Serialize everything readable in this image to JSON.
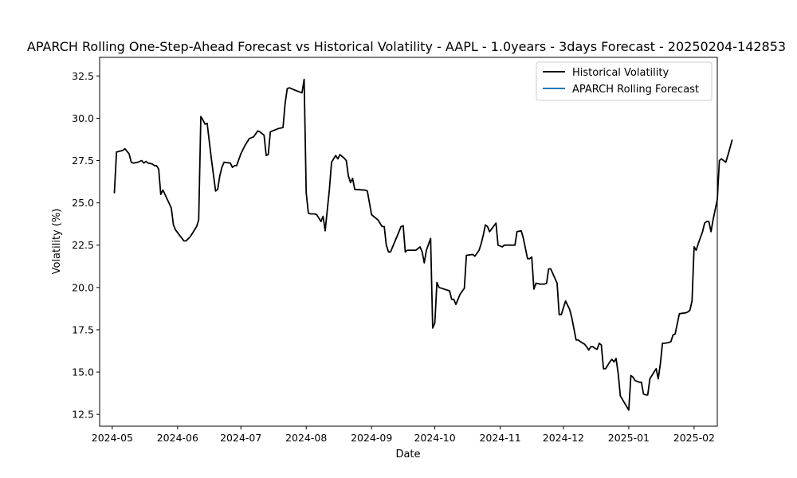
{
  "chart_data": {
    "type": "line",
    "title": "APARCH Rolling One-Step-Ahead Forecast vs Historical Volatility - AAPL - 1.0years - 3days Forecast - 20250204-142853",
    "xlabel": "Date",
    "ylabel": "Volatility (%)",
    "grid": false,
    "legend_position": "top-right",
    "x_ticks": [
      "2024-05",
      "2024-06",
      "2024-07",
      "2024-08",
      "2024-09",
      "2024-10",
      "2024-11",
      "2024-12",
      "2025-01",
      "2025-02"
    ],
    "y_ticks": [
      "12.5",
      "15.0",
      "17.5",
      "20.0",
      "22.5",
      "25.0",
      "27.5",
      "30.0",
      "32.5"
    ],
    "xlim": [
      "2024-04-25",
      "2025-02-12"
    ],
    "ylim": [
      11.8,
      33.6
    ],
    "series": [
      {
        "name": "Historical Volatility",
        "color": "#000000",
        "points": [
          [
            "2024-05-02",
            25.6
          ],
          [
            "2024-05-03",
            28.0
          ],
          [
            "2024-05-06",
            28.1
          ],
          [
            "2024-05-07",
            28.2
          ],
          [
            "2024-05-09",
            27.9
          ],
          [
            "2024-05-10",
            27.4
          ],
          [
            "2024-05-11",
            27.35
          ],
          [
            "2024-05-13",
            27.4
          ],
          [
            "2024-05-15",
            27.5
          ],
          [
            "2024-05-16",
            27.35
          ],
          [
            "2024-05-17",
            27.45
          ],
          [
            "2024-05-18",
            27.35
          ],
          [
            "2024-05-20",
            27.3
          ],
          [
            "2024-05-21",
            27.2
          ],
          [
            "2024-05-22",
            27.2
          ],
          [
            "2024-05-23",
            27.0
          ],
          [
            "2024-05-24",
            25.5
          ],
          [
            "2024-05-25",
            25.75
          ],
          [
            "2024-05-26",
            25.5
          ],
          [
            "2024-05-29",
            24.7
          ],
          [
            "2024-05-30",
            23.7
          ],
          [
            "2024-05-31",
            23.4
          ],
          [
            "2024-06-04",
            22.75
          ],
          [
            "2024-06-05",
            22.75
          ],
          [
            "2024-06-07",
            23.0
          ],
          [
            "2024-06-10",
            23.6
          ],
          [
            "2024-06-11",
            24.0
          ],
          [
            "2024-06-12",
            30.1
          ],
          [
            "2024-06-13",
            29.9
          ],
          [
            "2024-06-14",
            29.65
          ],
          [
            "2024-06-15",
            29.7
          ],
          [
            "2024-06-17",
            27.6
          ],
          [
            "2024-06-19",
            25.7
          ],
          [
            "2024-06-20",
            25.8
          ],
          [
            "2024-06-21",
            26.6
          ],
          [
            "2024-06-22",
            27.1
          ],
          [
            "2024-06-23",
            27.4
          ],
          [
            "2024-06-26",
            27.35
          ],
          [
            "2024-06-27",
            27.1
          ],
          [
            "2024-06-28",
            27.2
          ],
          [
            "2024-06-29",
            27.2
          ],
          [
            "2024-07-01",
            27.9
          ],
          [
            "2024-07-03",
            28.4
          ],
          [
            "2024-07-05",
            28.8
          ],
          [
            "2024-07-07",
            28.9
          ],
          [
            "2024-07-09",
            29.25
          ],
          [
            "2024-07-10",
            29.2
          ],
          [
            "2024-07-12",
            29.0
          ],
          [
            "2024-07-13",
            27.8
          ],
          [
            "2024-07-14",
            27.85
          ],
          [
            "2024-07-15",
            29.2
          ],
          [
            "2024-07-17",
            29.3
          ],
          [
            "2024-07-19",
            29.4
          ],
          [
            "2024-07-21",
            29.45
          ],
          [
            "2024-07-22",
            30.9
          ],
          [
            "2024-07-23",
            31.75
          ],
          [
            "2024-07-24",
            31.8
          ],
          [
            "2024-07-26",
            31.7
          ],
          [
            "2024-07-28",
            31.6
          ],
          [
            "2024-07-30",
            31.5
          ],
          [
            "2024-07-31",
            32.3
          ],
          [
            "2024-08-01",
            25.6
          ],
          [
            "2024-08-02",
            24.4
          ],
          [
            "2024-08-03",
            24.35
          ],
          [
            "2024-08-05",
            24.35
          ],
          [
            "2024-08-06",
            24.3
          ],
          [
            "2024-08-07",
            24.1
          ],
          [
            "2024-08-08",
            23.9
          ],
          [
            "2024-08-09",
            24.2
          ],
          [
            "2024-08-10",
            23.35
          ],
          [
            "2024-08-11",
            24.6
          ],
          [
            "2024-08-12",
            25.8
          ],
          [
            "2024-08-13",
            27.4
          ],
          [
            "2024-08-14",
            27.6
          ],
          [
            "2024-08-15",
            27.8
          ],
          [
            "2024-08-16",
            27.6
          ],
          [
            "2024-08-17",
            27.85
          ],
          [
            "2024-08-19",
            27.65
          ],
          [
            "2024-08-20",
            27.5
          ],
          [
            "2024-08-21",
            26.6
          ],
          [
            "2024-08-22",
            26.2
          ],
          [
            "2024-08-23",
            26.45
          ],
          [
            "2024-08-24",
            25.8
          ],
          [
            "2024-08-29",
            25.75
          ],
          [
            "2024-08-30",
            25.7
          ],
          [
            "2024-09-01",
            24.3
          ],
          [
            "2024-09-04",
            24.0
          ],
          [
            "2024-09-06",
            23.6
          ],
          [
            "2024-09-07",
            23.6
          ],
          [
            "2024-09-08",
            22.5
          ],
          [
            "2024-09-09",
            22.1
          ],
          [
            "2024-09-10",
            22.1
          ],
          [
            "2024-09-12",
            22.7
          ],
          [
            "2024-09-13",
            23.0
          ],
          [
            "2024-09-15",
            23.6
          ],
          [
            "2024-09-16",
            23.65
          ],
          [
            "2024-09-17",
            22.1
          ],
          [
            "2024-09-18",
            22.2
          ],
          [
            "2024-09-21",
            22.2
          ],
          [
            "2024-09-22",
            22.2
          ],
          [
            "2024-09-23",
            22.3
          ],
          [
            "2024-09-24",
            22.4
          ],
          [
            "2024-09-25",
            22.1
          ],
          [
            "2024-09-26",
            21.45
          ],
          [
            "2024-09-27",
            22.2
          ],
          [
            "2024-09-29",
            22.9
          ],
          [
            "2024-09-30",
            17.6
          ],
          [
            "2024-10-01",
            17.9
          ],
          [
            "2024-10-02",
            20.3
          ],
          [
            "2024-10-03",
            20.0
          ],
          [
            "2024-10-08",
            19.8
          ],
          [
            "2024-10-09",
            19.3
          ],
          [
            "2024-10-10",
            19.3
          ],
          [
            "2024-10-11",
            19.0
          ],
          [
            "2024-10-13",
            19.6
          ],
          [
            "2024-10-15",
            19.95
          ],
          [
            "2024-10-16",
            21.9
          ],
          [
            "2024-10-19",
            21.95
          ],
          [
            "2024-10-20",
            21.85
          ],
          [
            "2024-10-22",
            22.2
          ],
          [
            "2024-10-23",
            22.6
          ],
          [
            "2024-10-24",
            23.1
          ],
          [
            "2024-10-25",
            23.7
          ],
          [
            "2024-10-26",
            23.6
          ],
          [
            "2024-10-27",
            23.3
          ],
          [
            "2024-10-30",
            23.8
          ],
          [
            "2024-10-31",
            22.5
          ],
          [
            "2024-11-02",
            22.4
          ],
          [
            "2024-11-03",
            22.5
          ],
          [
            "2024-11-06",
            22.5
          ],
          [
            "2024-11-08",
            22.5
          ],
          [
            "2024-11-09",
            23.3
          ],
          [
            "2024-11-11",
            23.35
          ],
          [
            "2024-11-12",
            22.9
          ],
          [
            "2024-11-13",
            22.3
          ],
          [
            "2024-11-14",
            21.7
          ],
          [
            "2024-11-15",
            21.7
          ],
          [
            "2024-11-16",
            21.8
          ],
          [
            "2024-11-17",
            19.9
          ],
          [
            "2024-11-18",
            20.25
          ],
          [
            "2024-11-20",
            20.2
          ],
          [
            "2024-11-22",
            20.2
          ],
          [
            "2024-11-23",
            20.25
          ],
          [
            "2024-11-24",
            21.1
          ],
          [
            "2024-11-25",
            21.1
          ],
          [
            "2024-11-28",
            20.25
          ],
          [
            "2024-11-29",
            18.4
          ],
          [
            "2024-11-30",
            18.4
          ],
          [
            "2024-12-02",
            19.2
          ],
          [
            "2024-12-04",
            18.7
          ],
          [
            "2024-12-05",
            18.2
          ],
          [
            "2024-12-07",
            16.9
          ],
          [
            "2024-12-08",
            16.9
          ],
          [
            "2024-12-09",
            16.8
          ],
          [
            "2024-12-11",
            16.65
          ],
          [
            "2024-12-12",
            16.5
          ],
          [
            "2024-12-13",
            16.3
          ],
          [
            "2024-12-14",
            16.5
          ],
          [
            "2024-12-15",
            16.5
          ],
          [
            "2024-12-16",
            16.4
          ],
          [
            "2024-12-17",
            16.35
          ],
          [
            "2024-12-18",
            16.7
          ],
          [
            "2024-12-19",
            16.6
          ],
          [
            "2024-12-20",
            15.2
          ],
          [
            "2024-12-21",
            15.2
          ],
          [
            "2024-12-22",
            15.4
          ],
          [
            "2024-12-23",
            15.6
          ],
          [
            "2024-12-24",
            15.75
          ],
          [
            "2024-12-25",
            15.6
          ],
          [
            "2024-12-26",
            15.8
          ],
          [
            "2024-12-27",
            14.9
          ],
          [
            "2024-12-28",
            13.6
          ],
          [
            "2025-01-01",
            12.75
          ],
          [
            "2025-01-02",
            14.8
          ],
          [
            "2025-01-03",
            14.7
          ],
          [
            "2025-01-04",
            14.5
          ],
          [
            "2025-01-05",
            14.45
          ],
          [
            "2025-01-06",
            14.4
          ],
          [
            "2025-01-07",
            14.4
          ],
          [
            "2025-01-08",
            13.7
          ],
          [
            "2025-01-09",
            13.65
          ],
          [
            "2025-01-10",
            13.65
          ],
          [
            "2025-01-11",
            14.6
          ],
          [
            "2025-01-12",
            14.8
          ],
          [
            "2025-01-13",
            15.0
          ],
          [
            "2025-01-14",
            15.2
          ],
          [
            "2025-01-15",
            14.6
          ],
          [
            "2025-01-16",
            15.5
          ],
          [
            "2025-01-17",
            16.7
          ],
          [
            "2025-01-18",
            16.7
          ],
          [
            "2025-01-20",
            16.75
          ],
          [
            "2025-01-21",
            16.8
          ],
          [
            "2025-01-22",
            17.2
          ],
          [
            "2025-01-23",
            17.25
          ],
          [
            "2025-01-25",
            18.45
          ],
          [
            "2025-01-28",
            18.5
          ],
          [
            "2025-01-29",
            18.55
          ],
          [
            "2025-01-30",
            18.65
          ],
          [
            "2025-01-31",
            19.2
          ],
          [
            "2025-02-01",
            22.4
          ],
          [
            "2025-02-02",
            22.2
          ],
          [
            "2025-02-03",
            22.6
          ],
          [
            "2025-02-05",
            23.3
          ],
          [
            "2025-02-06",
            23.8
          ],
          [
            "2025-02-07",
            23.9
          ],
          [
            "2025-02-08",
            23.9
          ],
          [
            "2025-02-09",
            23.3
          ],
          [
            "2025-02-10",
            24.0
          ],
          [
            "2025-02-11",
            24.6
          ],
          [
            "2025-02-12",
            25.2
          ],
          [
            "2025-02-13",
            27.5
          ],
          [
            "2025-02-14",
            27.6
          ],
          [
            "2025-02-15",
            27.5
          ],
          [
            "2025-02-16",
            27.4
          ],
          [
            "2025-02-17",
            27.8
          ],
          [
            "2025-02-18",
            28.25
          ],
          [
            "2025-02-19",
            28.7
          ]
        ]
      },
      {
        "name": "APARCH Rolling Forecast",
        "color": "#1f77b4",
        "points": []
      }
    ]
  }
}
